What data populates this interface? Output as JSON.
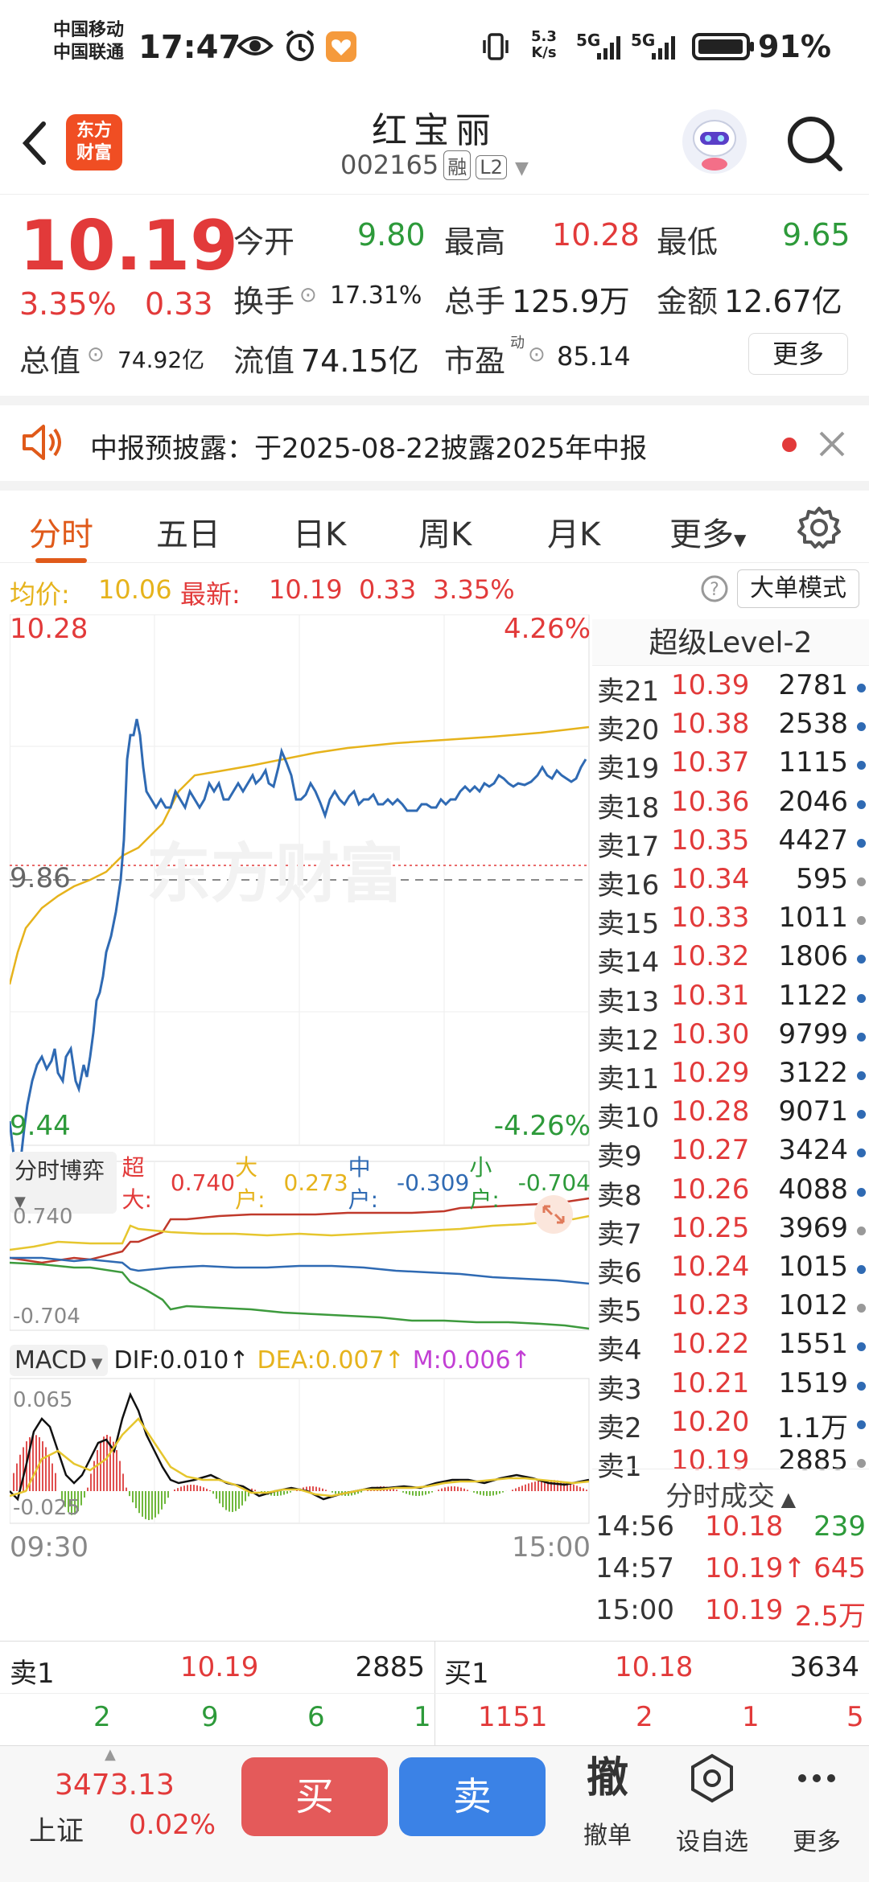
{
  "status_bar": {
    "carrier1": "中国移动",
    "carrier2": "中国联通",
    "time": "17:47",
    "net_speed_value": "5.3",
    "net_speed_unit": "K/s",
    "signal1": "5G",
    "signal2": "5G",
    "battery": "91%"
  },
  "header": {
    "logo_line1": "东方",
    "logo_line2": "财富",
    "stock_name": "红宝丽",
    "stock_code": "002165",
    "tag_margin": "融",
    "tag_level": "L2"
  },
  "quote": {
    "price": "10.19",
    "change_pct": "3.35%",
    "change": "0.33",
    "open_label": "今开",
    "open": "9.80",
    "high_label": "最高",
    "high": "10.28",
    "low_label": "最低",
    "low": "9.65",
    "turnover_label": "换手",
    "turnover": "17.31%",
    "volume_label": "总手",
    "volume": "125.9万",
    "amount_label": "金额",
    "amount": "12.67亿",
    "mktcap_label": "总值",
    "mktcap": "74.92亿",
    "float_label": "流值",
    "float": "74.15亿",
    "pe_label": "市盈",
    "pe_sup": "动",
    "pe": "85.14",
    "more": "更多"
  },
  "notice": {
    "text": "中报预披露：于2025-08-22披露2025年中报"
  },
  "tabs": [
    "分时",
    "五日",
    "日K",
    "周K",
    "月K",
    "更多"
  ],
  "avg_row": {
    "avg_label": "均价:",
    "avg": "10.06",
    "latest_label": "最新:",
    "latest": "10.19",
    "chg": "0.33",
    "pct": "3.35%",
    "big_order_mode": "大单模式"
  },
  "intraday": {
    "high_label": "10.28",
    "high_pct": "4.26%",
    "base_label": "9.86",
    "low_label": "9.44",
    "low_pct": "-4.26%",
    "watermark": "东方财富"
  },
  "flow": {
    "selector": "分时博弈",
    "super_label": "超大:",
    "super": "0.740",
    "big_label": "大户:",
    "big": "0.273",
    "mid_label": "中户:",
    "mid": "-0.309",
    "small_label": "小户:",
    "small": "-0.704",
    "ymax": "0.740",
    "ymin": "-0.704"
  },
  "macd": {
    "selector": "MACD",
    "dif": "DIF:0.010↑",
    "dea": "DEA:0.007↑",
    "m": "M:0.006↑",
    "ymax": "0.065",
    "ymin": "-0.025",
    "time_start": "09:30",
    "time_end": "15:00"
  },
  "order_book": {
    "title": "超级Level-2",
    "rows": [
      {
        "label": "卖21",
        "price": "10.39",
        "vol": "2781",
        "dot": "#2f6ab3"
      },
      {
        "label": "卖20",
        "price": "10.38",
        "vol": "2538",
        "dot": "#2f6ab3"
      },
      {
        "label": "卖19",
        "price": "10.37",
        "vol": "1115",
        "dot": "#2f6ab3"
      },
      {
        "label": "卖18",
        "price": "10.36",
        "vol": "2046",
        "dot": "#2f6ab3"
      },
      {
        "label": "卖17",
        "price": "10.35",
        "vol": "4427",
        "dot": "#2f6ab3"
      },
      {
        "label": "卖16",
        "price": "10.34",
        "vol": "595",
        "dot": "#999999"
      },
      {
        "label": "卖15",
        "price": "10.33",
        "vol": "1011",
        "dot": "#999999"
      },
      {
        "label": "卖14",
        "price": "10.32",
        "vol": "1806",
        "dot": "#2f6ab3"
      },
      {
        "label": "卖13",
        "price": "10.31",
        "vol": "1122",
        "dot": "#2f6ab3"
      },
      {
        "label": "卖12",
        "price": "10.30",
        "vol": "9799",
        "dot": "#2f6ab3"
      },
      {
        "label": "卖11",
        "price": "10.29",
        "vol": "3122",
        "dot": "#2f6ab3"
      },
      {
        "label": "卖10",
        "price": "10.28",
        "vol": "9071",
        "dot": "#2f6ab3"
      },
      {
        "label": "卖9",
        "price": "10.27",
        "vol": "3424",
        "dot": "#2f6ab3"
      },
      {
        "label": "卖8",
        "price": "10.26",
        "vol": "4088",
        "dot": "#2f6ab3"
      },
      {
        "label": "卖7",
        "price": "10.25",
        "vol": "3969",
        "dot": "#999999"
      },
      {
        "label": "卖6",
        "price": "10.24",
        "vol": "1015",
        "dot": "#2f6ab3"
      },
      {
        "label": "卖5",
        "price": "10.23",
        "vol": "1012",
        "dot": "#999999"
      },
      {
        "label": "卖4",
        "price": "10.22",
        "vol": "1551",
        "dot": "#2f6ab3"
      },
      {
        "label": "卖3",
        "price": "10.21",
        "vol": "1519",
        "dot": "#2f6ab3"
      },
      {
        "label": "卖2",
        "price": "10.20",
        "vol": "1.1万",
        "dot": "#2f6ab3"
      },
      {
        "label": "卖1",
        "price": "10.19",
        "vol": "2885",
        "dot": "#999999"
      }
    ]
  },
  "trades": {
    "title": "分时成交",
    "rows": [
      {
        "time": "14:56",
        "price": "10.18",
        "vol": "239",
        "vol_color": "#2d9a3a"
      },
      {
        "time": "14:57",
        "price": "10.19↑",
        "vol": "645",
        "vol_color": "#e23a3a"
      },
      {
        "time": "15:00",
        "price": "10.19",
        "vol": "2.5万",
        "vol_color": "#e23a3a"
      }
    ]
  },
  "book_bar": {
    "left_label": "卖1",
    "left_price": "10.19",
    "left_vol": "2885",
    "right_label": "买1",
    "right_price": "10.18",
    "right_vol": "3634",
    "left_counts": [
      "2",
      "9",
      "6",
      "1"
    ],
    "right_counts": [
      "1151",
      "2",
      "1",
      "5"
    ]
  },
  "bottom_nav": {
    "index_value": "3473.13",
    "index_name": "上证",
    "index_pct": "0.02%",
    "buy": "买",
    "sell": "卖",
    "cancel_icon": "撤",
    "cancel": "撤单",
    "watchlist": "设自选",
    "more": "更多"
  },
  "colors": {
    "up": "#e23a3a",
    "down": "#2d9a3a",
    "price_line": "#2f6ab3",
    "avg_line": "#e6b31c",
    "accent": "#e05a1a"
  }
}
